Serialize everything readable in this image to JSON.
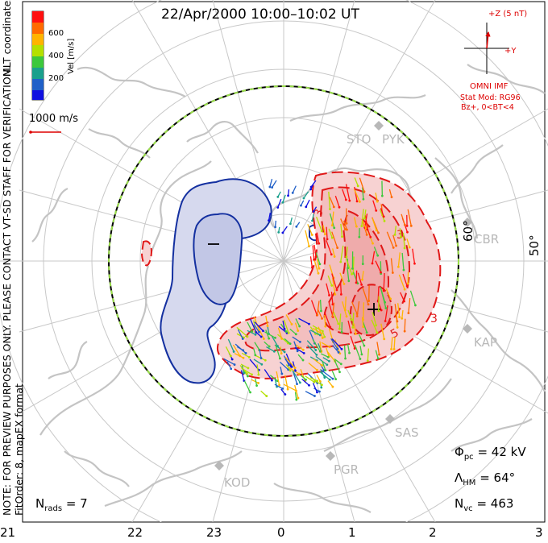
{
  "title": "22/Apr/2000  10:00–10:02  UT",
  "side_note": {
    "line1": "NOTE: FOR PREVIEW PURPOSES ONLY. PLEASE CONTACT VT-SD STAFF FOR VERIFICATION.",
    "line2": "FitOrder: 8, mapEX format"
  },
  "coordinates_label": "MLT coordinates",
  "color_scale": {
    "label": "Vel [m/s]",
    "ticks": [
      "600",
      "400",
      "200"
    ],
    "colors": [
      "#ff1010",
      "#ff6a00",
      "#ffb400",
      "#b4e000",
      "#3cc83c",
      "#1aa08c",
      "#2060c8",
      "#1010e0"
    ]
  },
  "velocity_scale": "1000 m/s",
  "imf": {
    "z_label": "+Z (5 nT)",
    "y_label": "+Y",
    "source": "OMNI IMF",
    "model": "Stat Mod: RG96",
    "condition": "Bz+, 0<BT<4"
  },
  "stats": {
    "phi_pc": {
      "symbol": "Φ",
      "sub": "pc",
      "value": "= 42 kV"
    },
    "lambda_hm": {
      "symbol": "Λ",
      "sub": "HM",
      "value": "= 64°"
    },
    "n_vc": {
      "symbol": "N",
      "sub": "vc",
      "value": "= 463"
    },
    "n_rads": {
      "symbol": "N",
      "sub": "rads",
      "value": "= 7"
    }
  },
  "mlt_ticks": [
    "21",
    "22",
    "23",
    "0",
    "1",
    "2",
    "3"
  ],
  "latitude_labels": [
    "60°",
    "50°"
  ],
  "stations": [
    "STO",
    "PYK",
    "CBR",
    "KAP",
    "SAS",
    "PGR",
    "KOD"
  ],
  "contour_labels": [
    "−",
    "+",
    "− 3",
    "− 5",
    "− 3",
    "− 3",
    "− 3"
  ],
  "colors": {
    "positive_contour": "#e01818",
    "negative_contour": "#1430a0",
    "positive_fill": "#f7c8c8",
    "negative_fill": "#d6d9ee",
    "grid": "#c8c8c8",
    "coast": "#c4c4c4",
    "station": "#b8b8b8"
  }
}
